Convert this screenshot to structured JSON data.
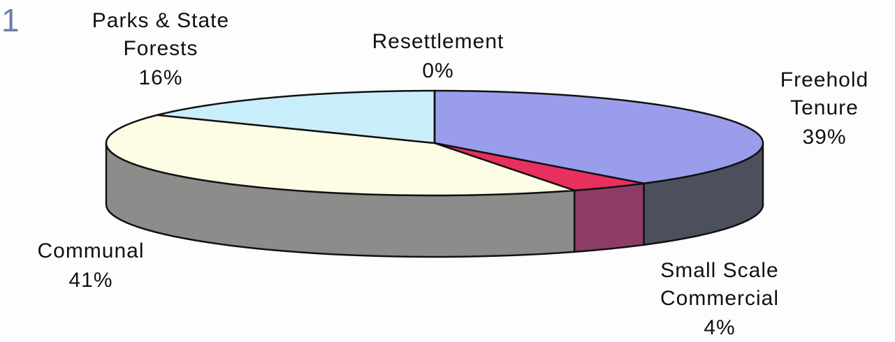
{
  "chart_data": {
    "type": "pie",
    "annotations": [
      "1"
    ],
    "categories": [
      "Freehold Tenure",
      "Small Scale Commercial",
      "Communal",
      "Parks & State Forests",
      "Resettlement"
    ],
    "values": [
      39,
      4,
      41,
      16,
      0
    ],
    "value_labels": [
      "39%",
      "4%",
      "41%",
      "16%",
      "0%"
    ],
    "colors": [
      "#9a9cec",
      "#e8305e",
      "#fdfde6",
      "#c9eefb",
      "#f2f2f2"
    ]
  }
}
